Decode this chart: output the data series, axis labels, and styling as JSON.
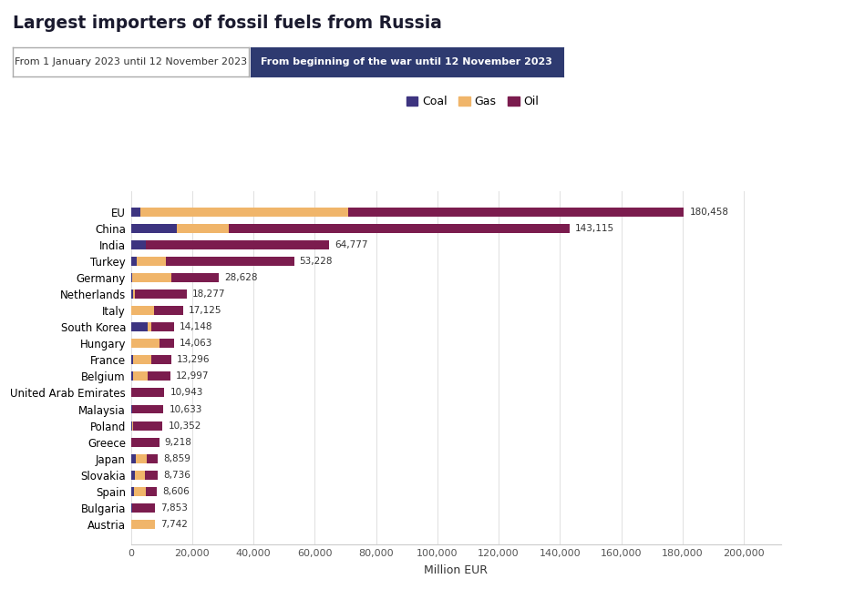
{
  "title": "Largest importers of fossil fuels from Russia",
  "tab1_label": "From 1 January 2023 until 12 November 2023",
  "tab2_label": "From beginning of the war until 12 November 2023",
  "xlabel": "Million EUR",
  "colors": {
    "coal": "#3d3480",
    "gas": "#f0b56a",
    "oil": "#7b1c4e"
  },
  "countries": [
    "EU",
    "China",
    "India",
    "Turkey",
    "Germany",
    "Netherlands",
    "Italy",
    "South Korea",
    "Hungary",
    "France",
    "Belgium",
    "United Arab Emirates",
    "Malaysia",
    "Poland",
    "Greece",
    "Japan",
    "Slovakia",
    "Spain",
    "Bulgaria",
    "Austria"
  ],
  "totals": [
    180458,
    143115,
    64777,
    53228,
    28628,
    18277,
    17125,
    14148,
    14063,
    13296,
    12997,
    10943,
    10633,
    10352,
    9218,
    8859,
    8736,
    8606,
    7853,
    7742
  ],
  "coal": [
    3000,
    15000,
    5000,
    2000,
    300,
    600,
    200,
    5500,
    0,
    600,
    600,
    0,
    500,
    400,
    100,
    1500,
    1200,
    900,
    300,
    0
  ],
  "gas": [
    68000,
    17000,
    0,
    9500,
    13000,
    700,
    7500,
    1200,
    9500,
    6000,
    4800,
    0,
    0,
    200,
    0,
    3800,
    3400,
    3900,
    0,
    7742
  ],
  "oil": [
    109458,
    111115,
    59777,
    41728,
    15328,
    16977,
    9425,
    7448,
    4563,
    6696,
    7597,
    10943,
    10133,
    9752,
    9118,
    3559,
    4136,
    3806,
    7553,
    0
  ],
  "tab_active_color": "#2e3a70",
  "bar_height": 0.55,
  "figsize": [
    9.26,
    6.47
  ],
  "dpi": 100
}
